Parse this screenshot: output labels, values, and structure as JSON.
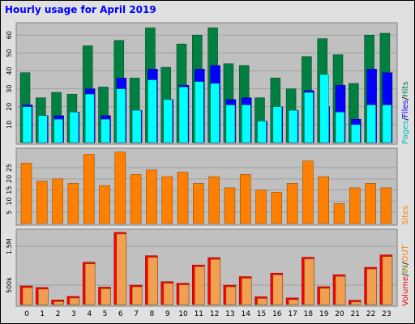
{
  "title": "Hourly usage for April 2019",
  "colors": {
    "hits": "#008040",
    "files": "#0000ff",
    "pages": "#00ffff",
    "sites": "#ff8000",
    "volume": "#ff0000",
    "volume_in": "#f0a050",
    "volume_out": "#808000",
    "panel_bg": "#c0c0c0",
    "frame_bg": "#e0e0e0"
  },
  "legends": {
    "top": [
      {
        "text": "Hits",
        "color": "#008040"
      },
      {
        "text": "/",
        "color": "#000000"
      },
      {
        "text": "Files",
        "color": "#0000ff"
      },
      {
        "text": "/",
        "color": "#000000"
      },
      {
        "text": "Pages",
        "color": "#00c0c0"
      }
    ],
    "sites": {
      "text": "Sites",
      "color": "#ff8000"
    },
    "volume": [
      {
        "text": "Volume",
        "color": "#ff0000"
      },
      {
        "text": "/",
        "color": "#000000"
      },
      {
        "text": "IN",
        "color": "#808000"
      },
      {
        "text": "/",
        "color": "#000000"
      },
      {
        "text": "OUT",
        "color": "#ff8000"
      }
    ]
  },
  "chart_data": [
    {
      "type": "bar",
      "categories": [
        "0",
        "1",
        "2",
        "3",
        "4",
        "5",
        "6",
        "7",
        "8",
        "9",
        "10",
        "11",
        "12",
        "13",
        "14",
        "15",
        "16",
        "17",
        "18",
        "19",
        "20",
        "21",
        "22",
        "23"
      ],
      "series": [
        {
          "name": "Hits",
          "values": [
            39,
            25,
            28,
            27,
            54,
            31,
            57,
            36,
            64,
            42,
            55,
            60,
            64,
            44,
            43,
            25,
            36,
            30,
            48,
            58,
            49,
            33,
            60,
            61
          ]
        },
        {
          "name": "Files",
          "values": [
            21,
            15,
            15,
            17,
            30,
            15,
            36,
            18,
            41,
            24,
            32,
            41,
            43,
            24,
            25,
            12,
            20,
            18,
            29,
            20,
            32,
            13,
            41,
            39
          ]
        },
        {
          "name": "Pages",
          "values": [
            20,
            15,
            13,
            17,
            27,
            13,
            30,
            18,
            35,
            24,
            31,
            34,
            33,
            21,
            21,
            12,
            20,
            18,
            28,
            38,
            17,
            10,
            21,
            21
          ]
        }
      ],
      "yticks": [
        10,
        20,
        30,
        40,
        50,
        60
      ],
      "ylim": [
        0,
        66
      ]
    },
    {
      "type": "bar",
      "categories": [
        "0",
        "1",
        "2",
        "3",
        "4",
        "5",
        "6",
        "7",
        "8",
        "9",
        "10",
        "11",
        "12",
        "13",
        "14",
        "15",
        "16",
        "17",
        "18",
        "19",
        "20",
        "21",
        "22",
        "23"
      ],
      "series": [
        {
          "name": "Sites",
          "values": [
            27,
            19,
            20,
            18,
            31,
            17,
            32,
            22,
            24,
            21,
            23,
            18,
            21,
            16,
            22,
            15,
            14,
            18,
            28,
            21,
            9,
            16,
            18,
            16
          ]
        }
      ],
      "yticks": [
        5,
        10,
        15,
        20,
        25
      ],
      "ylim": [
        0,
        33
      ]
    },
    {
      "type": "bar",
      "categories": [
        "0",
        "1",
        "2",
        "3",
        "4",
        "5",
        "6",
        "7",
        "8",
        "9",
        "10",
        "11",
        "12",
        "13",
        "14",
        "15",
        "16",
        "17",
        "18",
        "19",
        "20",
        "21",
        "22",
        "23"
      ],
      "series": [
        {
          "name": "Volume",
          "values": [
            480,
            440,
            120,
            210,
            1090,
            450,
            1860,
            500,
            1260,
            590,
            550,
            1020,
            1210,
            500,
            720,
            200,
            810,
            170,
            1220,
            460,
            770,
            110,
            960,
            1280
          ]
        }
      ],
      "yticks": [
        "500k",
        "1.5M"
      ],
      "ytick_values": [
        500,
        1500
      ],
      "ylim": [
        0,
        1900
      ]
    }
  ]
}
